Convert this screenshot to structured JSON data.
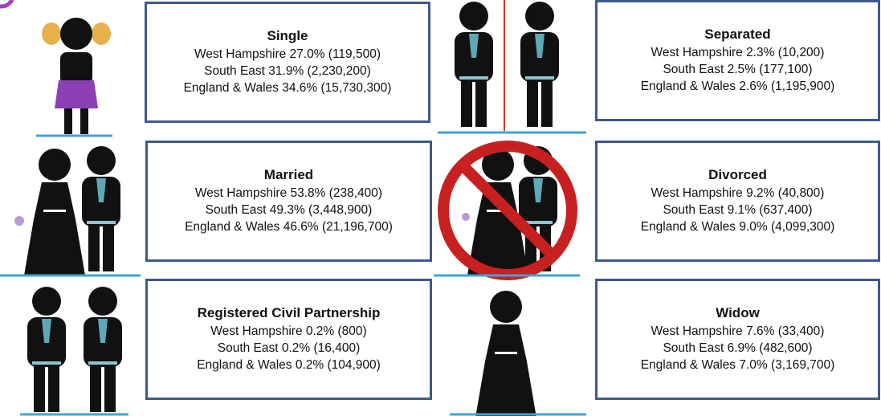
{
  "panels": [
    {
      "title": "Single",
      "lines": [
        "West Hampshire 27.0% (119,500)",
        "South East 31.9% (2,230,200)",
        "England & Wales 34.6% (15,730,300)"
      ]
    },
    {
      "title": "Married",
      "lines": [
        "West Hampshire 53.8% (238,400)",
        "South East 49.3% (3,448,900)",
        "England & Wales 46.6% (21,196,700)"
      ]
    },
    {
      "title": "Registered Civil Partnership",
      "lines": [
        "West Hampshire 0.2% (800)",
        "South East 0.2% (16,400)",
        "England & Wales 0.2% (104,900)"
      ]
    },
    {
      "title": "Separated",
      "lines": [
        "West Hampshire 2.3% (10,200)",
        "South East 2.5% (177,100)",
        "England & Wales 2.6% (1,195,900)"
      ]
    },
    {
      "title": "Divorced",
      "lines": [
        "West Hampshire 9.2% (40,800)",
        "South East 9.1% (637,400)",
        "England & Wales 9.0% (4,099,300)"
      ]
    },
    {
      "title": "Widow",
      "lines": [
        "West Hampshire 7.6% (33,400)",
        "South East 6.9% (482,600)",
        "England & Wales 7.0% (3,169,700)"
      ]
    }
  ]
}
